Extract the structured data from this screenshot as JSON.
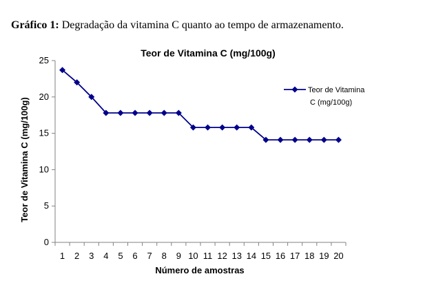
{
  "caption": {
    "label": "Gráfico 1:",
    "text": " Degradação da vitamina C quanto ao tempo de armazenamento."
  },
  "chart_data": {
    "type": "line",
    "title": "Teor de Vitamina C (mg/100g)",
    "xlabel": "Número de amostras",
    "ylabel": "Teor de Vitamina C (mg/100g)",
    "x": [
      1,
      2,
      3,
      4,
      5,
      6,
      7,
      8,
      9,
      10,
      11,
      12,
      13,
      14,
      15,
      16,
      17,
      18,
      19,
      20
    ],
    "series": [
      {
        "name": "Teor de Vitamina C (mg/100g)",
        "legend_lines": [
          "Teor de Vitamina",
          "C (mg/100g)"
        ],
        "values": [
          23.7,
          22.0,
          20.0,
          17.8,
          17.8,
          17.8,
          17.8,
          17.8,
          17.8,
          15.8,
          15.8,
          15.8,
          15.8,
          15.8,
          14.1,
          14.1,
          14.1,
          14.1,
          14.1,
          14.1
        ],
        "color": "#00008b"
      }
    ],
    "ylim": [
      0,
      25
    ],
    "yticks": [
      0,
      5,
      10,
      15,
      20,
      25
    ],
    "grid": false,
    "legend": "top-right",
    "marker": "diamond"
  }
}
